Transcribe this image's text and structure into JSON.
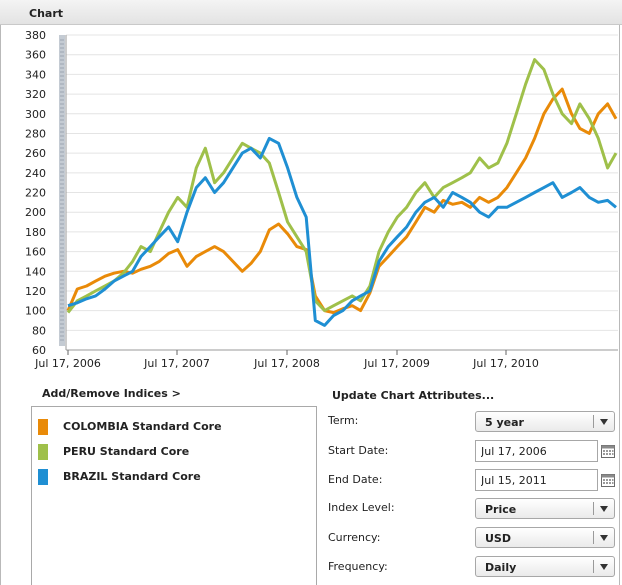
{
  "panel": {
    "title": "Chart"
  },
  "colors": {
    "colombia": "#e98a08",
    "peru": "#9fc04a",
    "brazil": "#1f8fd3",
    "grid": "#e4e4e4",
    "scrollbar": "#c4cbd3"
  },
  "chart_data": {
    "type": "line",
    "ylim": [
      60,
      380
    ],
    "yticks": [
      "60",
      "80",
      "100",
      "120",
      "140",
      "160",
      "180",
      "200",
      "220",
      "240",
      "260",
      "280",
      "300",
      "320",
      "340",
      "360",
      "380"
    ],
    "xticks": [
      "Jul 17, 2006",
      "Jul 17, 2007",
      "Jul 17, 2008",
      "Jul 17, 2009",
      "Jul 17, 2010"
    ],
    "xlim": [
      "2006-07-17",
      "2011-07-15"
    ],
    "grid": true,
    "series": [
      {
        "name": "COLOMBIA Standard Core",
        "color": "#e98a08",
        "x": [
          "2006-07-17",
          "2006-08-17",
          "2006-09-17",
          "2006-10-17",
          "2006-11-17",
          "2006-12-17",
          "2007-01-17",
          "2007-02-17",
          "2007-03-17",
          "2007-04-17",
          "2007-05-17",
          "2007-06-17",
          "2007-07-17",
          "2007-08-17",
          "2007-09-17",
          "2007-10-17",
          "2007-11-17",
          "2007-12-17",
          "2008-01-17",
          "2008-02-17",
          "2008-03-17",
          "2008-04-17",
          "2008-05-17",
          "2008-06-17",
          "2008-07-17",
          "2008-08-17",
          "2008-09-17",
          "2008-10-17",
          "2008-11-17",
          "2008-12-17",
          "2009-01-17",
          "2009-02-17",
          "2009-03-17",
          "2009-04-17",
          "2009-05-17",
          "2009-06-17",
          "2009-07-17",
          "2009-08-17",
          "2009-09-17",
          "2009-10-17",
          "2009-11-17",
          "2009-12-17",
          "2010-01-17",
          "2010-02-17",
          "2010-03-17",
          "2010-04-17",
          "2010-05-17",
          "2010-06-17",
          "2010-07-17",
          "2010-08-17",
          "2010-09-17",
          "2010-10-17",
          "2010-11-17",
          "2010-12-17",
          "2011-01-17",
          "2011-02-17",
          "2011-03-17",
          "2011-04-17",
          "2011-05-17",
          "2011-06-17",
          "2011-07-15"
        ],
        "values": [
          100,
          122,
          125,
          130,
          135,
          138,
          140,
          138,
          142,
          145,
          150,
          158,
          162,
          145,
          155,
          160,
          165,
          160,
          150,
          140,
          148,
          160,
          182,
          188,
          178,
          165,
          162,
          115,
          100,
          98,
          102,
          105,
          100,
          118,
          145,
          155,
          165,
          175,
          190,
          205,
          200,
          212,
          208,
          210,
          205,
          215,
          210,
          215,
          225,
          240,
          255,
          275,
          300,
          315,
          325,
          300,
          285,
          280,
          300,
          310,
          295
        ]
      },
      {
        "name": "PERU Standard Core",
        "color": "#9fc04a",
        "x": [
          "2006-07-17",
          "2006-08-17",
          "2006-09-17",
          "2006-10-17",
          "2006-11-17",
          "2006-12-17",
          "2007-01-17",
          "2007-02-17",
          "2007-03-17",
          "2007-04-17",
          "2007-05-17",
          "2007-06-17",
          "2007-07-17",
          "2007-08-17",
          "2007-09-17",
          "2007-10-17",
          "2007-11-17",
          "2007-12-17",
          "2008-01-17",
          "2008-02-17",
          "2008-03-17",
          "2008-04-17",
          "2008-05-17",
          "2008-06-17",
          "2008-07-17",
          "2008-08-17",
          "2008-09-17",
          "2008-10-17",
          "2008-11-17",
          "2008-12-17",
          "2009-01-17",
          "2009-02-17",
          "2009-03-17",
          "2009-04-17",
          "2009-05-17",
          "2009-06-17",
          "2009-07-17",
          "2009-08-17",
          "2009-09-17",
          "2009-10-17",
          "2009-11-17",
          "2009-12-17",
          "2010-01-17",
          "2010-02-17",
          "2010-03-17",
          "2010-04-17",
          "2010-05-17",
          "2010-06-17",
          "2010-07-17",
          "2010-08-17",
          "2010-09-17",
          "2010-10-17",
          "2010-11-17",
          "2010-12-17",
          "2011-01-17",
          "2011-02-17",
          "2011-03-17",
          "2011-04-17",
          "2011-05-17",
          "2011-06-17",
          "2011-07-15"
        ],
        "values": [
          98,
          110,
          115,
          120,
          125,
          130,
          138,
          150,
          165,
          160,
          180,
          200,
          215,
          205,
          245,
          265,
          230,
          240,
          255,
          270,
          265,
          260,
          250,
          220,
          190,
          175,
          160,
          110,
          100,
          105,
          110,
          115,
          110,
          125,
          160,
          180,
          195,
          205,
          220,
          230,
          215,
          225,
          230,
          235,
          240,
          255,
          245,
          250,
          270,
          300,
          330,
          355,
          345,
          320,
          300,
          290,
          310,
          295,
          275,
          245,
          260
        ]
      },
      {
        "name": "BRAZIL Standard Core",
        "color": "#1f8fd3",
        "x": [
          "2006-07-17",
          "2006-08-17",
          "2006-09-17",
          "2006-10-17",
          "2006-11-17",
          "2006-12-17",
          "2007-01-17",
          "2007-02-17",
          "2007-03-17",
          "2007-04-17",
          "2007-05-17",
          "2007-06-17",
          "2007-07-17",
          "2007-08-17",
          "2007-09-17",
          "2007-10-17",
          "2007-11-17",
          "2007-12-17",
          "2008-01-17",
          "2008-02-17",
          "2008-03-17",
          "2008-04-17",
          "2008-05-17",
          "2008-06-17",
          "2008-07-17",
          "2008-08-17",
          "2008-09-17",
          "2008-10-17",
          "2008-11-17",
          "2008-12-17",
          "2009-01-17",
          "2009-02-17",
          "2009-03-17",
          "2009-04-17",
          "2009-05-17",
          "2009-06-17",
          "2009-07-17",
          "2009-08-17",
          "2009-09-17",
          "2009-10-17",
          "2009-11-17",
          "2009-12-17",
          "2010-01-17",
          "2010-02-17",
          "2010-03-17",
          "2010-04-17",
          "2010-05-17",
          "2010-06-17",
          "2010-07-17",
          "2010-08-17",
          "2010-09-17",
          "2010-10-17",
          "2010-11-17",
          "2010-12-17",
          "2011-01-17",
          "2011-02-17",
          "2011-03-17",
          "2011-04-17",
          "2011-05-17",
          "2011-06-17",
          "2011-07-15"
        ],
        "values": [
          105,
          108,
          112,
          115,
          122,
          130,
          135,
          140,
          155,
          165,
          175,
          185,
          170,
          200,
          225,
          235,
          220,
          230,
          245,
          260,
          265,
          255,
          275,
          270,
          245,
          215,
          195,
          90,
          85,
          95,
          100,
          110,
          115,
          120,
          150,
          165,
          175,
          185,
          200,
          210,
          215,
          205,
          220,
          215,
          210,
          200,
          195,
          205,
          205,
          210,
          215,
          220,
          225,
          230,
          215,
          220,
          225,
          215,
          210,
          212,
          205
        ]
      }
    ]
  },
  "indices": {
    "add_remove_label": "Add/Remove Indices >",
    "items": [
      {
        "label": "COLOMBIA Standard Core",
        "color": "#e98a08"
      },
      {
        "label": "PERU Standard Core",
        "color": "#9fc04a"
      },
      {
        "label": "BRAZIL Standard Core",
        "color": "#1f8fd3"
      }
    ]
  },
  "form": {
    "title": "Update Chart Attributes...",
    "term_label": "Term:",
    "term_value": "5 year",
    "start_label": "Start Date:",
    "start_value": "Jul 17, 2006",
    "end_label": "End Date:",
    "end_value": "Jul 15, 2011",
    "index_level_label": "Index Level:",
    "index_level_value": "Price",
    "currency_label": "Currency:",
    "currency_value": "USD",
    "frequency_label": "Frequency:",
    "frequency_value": "Daily"
  },
  "icons": {
    "calendar": "calendar-icon",
    "dropdown": "chevron-down-icon"
  }
}
